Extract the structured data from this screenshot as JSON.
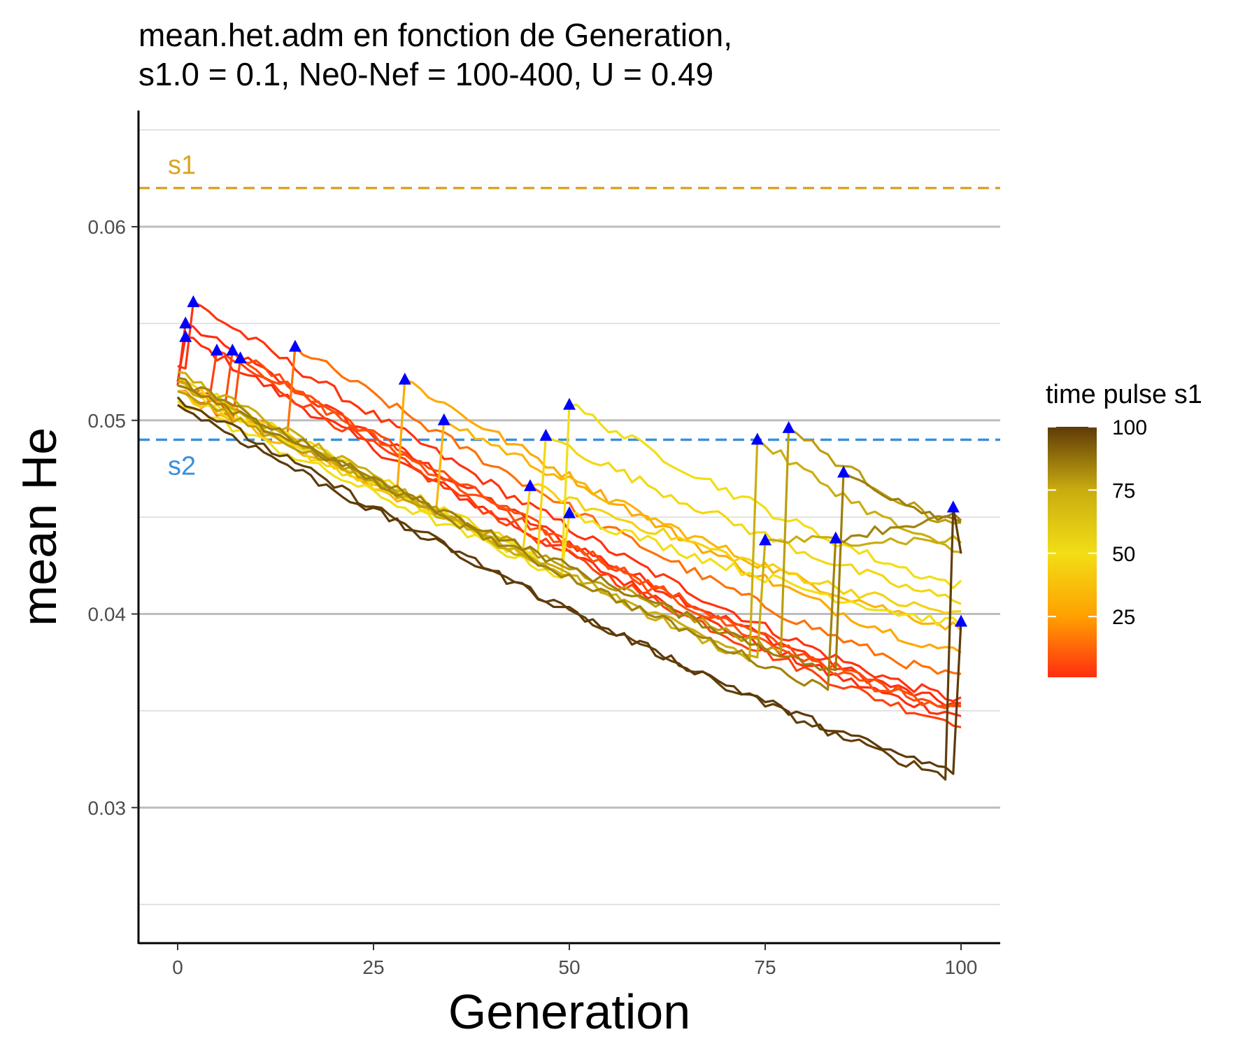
{
  "chart_data": {
    "type": "line",
    "title_line1": "mean.het.adm en fonction de Generation,",
    "title_line2": "s1.0 = 0.1, Ne0-Nef = 100-400, U = 0.49",
    "xlabel": "Generation",
    "ylabel": "mean He",
    "xlim": [
      -5,
      105
    ],
    "ylim": [
      0.023,
      0.066
    ],
    "x_ticks": [
      0,
      25,
      50,
      75,
      100
    ],
    "x_tick_labels": [
      "0",
      "25",
      "50",
      "75",
      "100"
    ],
    "y_ticks": [
      0.03,
      0.04,
      0.05,
      0.06
    ],
    "y_tick_labels": [
      "0.03",
      "0.04",
      "0.05",
      "0.06"
    ],
    "y_minor_gridlines": [
      0.025,
      0.035,
      0.045,
      0.055,
      0.065
    ],
    "grid": "horizontal",
    "reference_lines": [
      {
        "label": "s1",
        "y": 0.062,
        "color": "#DAA520",
        "style": "dashed"
      },
      {
        "label": "s2",
        "y": 0.049,
        "color": "#3A8FDB",
        "style": "dashed"
      }
    ],
    "legend": {
      "title": "time pulse s1",
      "position": "right",
      "type": "colorbar",
      "range": [
        1,
        100
      ],
      "ticks": [
        25,
        50,
        75,
        100
      ],
      "tick_labels": [
        "25",
        "50",
        "75",
        "100"
      ],
      "color_stops": [
        {
          "value": 1,
          "color": "#FF2E10"
        },
        {
          "value": 25,
          "color": "#FFA000"
        },
        {
          "value": 50,
          "color": "#F2DE16"
        },
        {
          "value": 75,
          "color": "#C9AC10"
        },
        {
          "value": 100,
          "color": "#5E3A08"
        }
      ]
    },
    "marker": {
      "shape": "triangle",
      "color": "#0000FF"
    },
    "series": [
      {
        "pulse": 1,
        "start": 0.0518,
        "end_pre": 0.0345,
        "peak": 0.055,
        "end": 0.0353
      },
      {
        "pulse": 1,
        "start": 0.052,
        "end_pre": 0.0345,
        "peak": 0.0543,
        "end": 0.0348
      },
      {
        "pulse": 2,
        "start": 0.0528,
        "end_pre": 0.0343,
        "peak": 0.0561,
        "end": 0.0356
      },
      {
        "pulse": 5,
        "start": 0.0515,
        "end_pre": 0.0345,
        "peak": 0.0536,
        "end": 0.0344
      },
      {
        "pulse": 7,
        "start": 0.052,
        "end_pre": 0.0343,
        "peak": 0.0536,
        "end": 0.0352
      },
      {
        "pulse": 8,
        "start": 0.0515,
        "end_pre": 0.0343,
        "peak": 0.0532,
        "end": 0.035
      },
      {
        "pulse": 15,
        "start": 0.052,
        "end_pre": 0.0345,
        "peak": 0.0538,
        "end": 0.0367
      },
      {
        "pulse": 29,
        "start": 0.0518,
        "end_pre": 0.0345,
        "peak": 0.0521,
        "end": 0.038
      },
      {
        "pulse": 34,
        "start": 0.0515,
        "end_pre": 0.0345,
        "peak": 0.05,
        "end": 0.0393
      },
      {
        "pulse": 45,
        "start": 0.0515,
        "end_pre": 0.0345,
        "peak": 0.0466,
        "end": 0.04
      },
      {
        "pulse": 47,
        "start": 0.0522,
        "end_pre": 0.0345,
        "peak": 0.0492,
        "end": 0.0407
      },
      {
        "pulse": 50,
        "start": 0.051,
        "end_pre": 0.0345,
        "peak": 0.0508,
        "end": 0.0415
      },
      {
        "pulse": 50,
        "start": 0.0518,
        "end_pre": 0.0345,
        "peak": 0.0452,
        "end": 0.0395
      },
      {
        "pulse": 74,
        "start": 0.0525,
        "end_pre": 0.0336,
        "peak": 0.049,
        "end": 0.0432
      },
      {
        "pulse": 75,
        "start": 0.052,
        "end_pre": 0.034,
        "peak": 0.0438,
        "end": 0.0438
      },
      {
        "pulse": 78,
        "start": 0.0515,
        "end_pre": 0.0352,
        "peak": 0.0496,
        "end": 0.0445
      },
      {
        "pulse": 84,
        "start": 0.0522,
        "end_pre": 0.0338,
        "peak": 0.0439,
        "end": 0.045
      },
      {
        "pulse": 85,
        "start": 0.0518,
        "end_pre": 0.035,
        "peak": 0.0473,
        "end": 0.0448
      },
      {
        "pulse": 99,
        "start": 0.0512,
        "end_pre": 0.0315,
        "peak": 0.0455,
        "end": 0.043
      },
      {
        "pulse": 100,
        "start": 0.0508,
        "end_pre": 0.0318,
        "peak": 0.0396,
        "end": 0.0396
      }
    ]
  }
}
